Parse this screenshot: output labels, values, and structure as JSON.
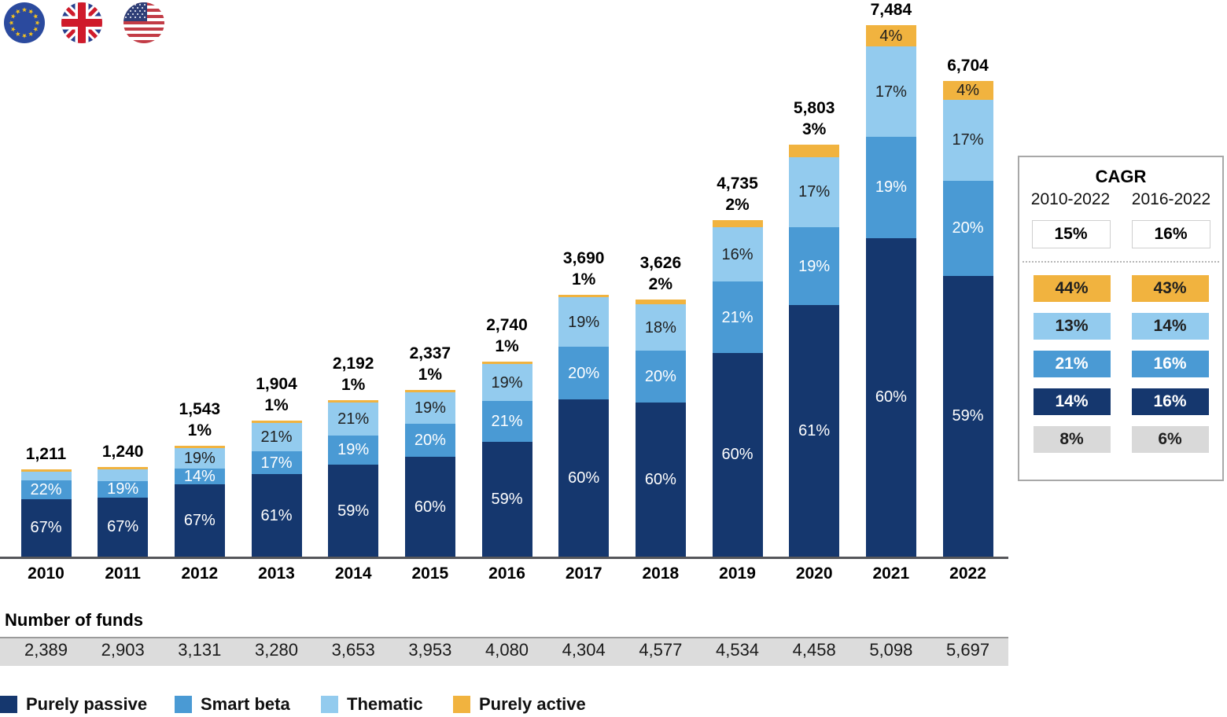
{
  "flags": [
    {
      "name": "eu-flag"
    },
    {
      "name": "uk-flag"
    },
    {
      "name": "us-flag"
    }
  ],
  "chart_data": {
    "type": "bar",
    "stacked": true,
    "categories": [
      "2010",
      "2011",
      "2012",
      "2013",
      "2014",
      "2015",
      "2016",
      "2017",
      "2018",
      "2019",
      "2020",
      "2021",
      "2022"
    ],
    "series": [
      {
        "name": "Purely passive",
        "color": "#15376e",
        "text_color": "#ffffff",
        "values": [
          67,
          67,
          67,
          61,
          59,
          60,
          59,
          60,
          60,
          60,
          61,
          60,
          59
        ]
      },
      {
        "name": "Smart beta",
        "color": "#4a9ad4",
        "text_color": "#ffffff",
        "values": [
          22,
          19,
          14,
          17,
          19,
          20,
          21,
          20,
          20,
          21,
          19,
          19,
          20
        ]
      },
      {
        "name": "Thematic",
        "color": "#93cbee",
        "text_color": "#1f1f1f",
        "values": [
          10,
          13,
          19,
          21,
          21,
          19,
          19,
          19,
          18,
          16,
          17,
          17,
          17
        ]
      },
      {
        "name": "Purely active",
        "color": "#f1b33f",
        "text_color": "#1f1f1f",
        "values": [
          1,
          1,
          1,
          1,
          1,
          1,
          1,
          1,
          2,
          2,
          3,
          4,
          4
        ]
      }
    ],
    "segment_labels": [
      [
        "67%",
        "22%",
        "",
        ""
      ],
      [
        "67%",
        "19%",
        "",
        ""
      ],
      [
        "67%",
        "14%",
        "19%",
        ""
      ],
      [
        "61%",
        "17%",
        "21%",
        ""
      ],
      [
        "59%",
        "19%",
        "21%",
        ""
      ],
      [
        "60%",
        "20%",
        "19%",
        ""
      ],
      [
        "59%",
        "21%",
        "19%",
        ""
      ],
      [
        "60%",
        "20%",
        "19%",
        ""
      ],
      [
        "60%",
        "20%",
        "18%",
        ""
      ],
      [
        "60%",
        "21%",
        "16%",
        ""
      ],
      [
        "61%",
        "19%",
        "17%",
        ""
      ],
      [
        "60%",
        "19%",
        "17%",
        "4%"
      ],
      [
        "59%",
        "20%",
        "17%",
        "4%"
      ]
    ],
    "totals": [
      "1,211",
      "1,240",
      "1,543",
      "1,904",
      "2,192",
      "2,337",
      "2,740",
      "3,690",
      "3,626",
      "4,735",
      "5,803",
      "7,484",
      "6,704"
    ],
    "total_values": [
      1211,
      1240,
      1543,
      1904,
      2192,
      2337,
      2740,
      3690,
      3626,
      4735,
      5803,
      7484,
      6704
    ],
    "above_labels": [
      "",
      "",
      "1%",
      "1%",
      "1%",
      "1%",
      "1%",
      "1%",
      "2%",
      "2%",
      "3%",
      "",
      ""
    ],
    "ylim": [
      0,
      7484
    ],
    "number_of_funds": {
      "label": "Number of funds",
      "values": [
        "2,389",
        "2,903",
        "3,131",
        "3,280",
        "3,653",
        "3,953",
        "4,080",
        "4,304",
        "4,577",
        "4,534",
        "4,458",
        "5,098",
        "5,697"
      ]
    }
  },
  "cagr": {
    "title": "CAGR",
    "columns": [
      "2010-2022",
      "2016-2022"
    ],
    "overall": [
      "15%",
      "16%"
    ],
    "rows": [
      {
        "name": "purely-active",
        "color": "#f1b33f",
        "text": "#1f1f1f",
        "values": [
          "44%",
          "43%"
        ]
      },
      {
        "name": "thematic",
        "color": "#93cbee",
        "text": "#1f1f1f",
        "values": [
          "13%",
          "14%"
        ]
      },
      {
        "name": "smart-beta",
        "color": "#4a9ad4",
        "text": "#ffffff",
        "values": [
          "21%",
          "16%"
        ]
      },
      {
        "name": "purely-passive",
        "color": "#15376e",
        "text": "#ffffff",
        "values": [
          "14%",
          "16%"
        ]
      },
      {
        "name": "other",
        "color": "#d9d9d9",
        "text": "#1f1f1f",
        "values": [
          "8%",
          "6%"
        ]
      }
    ]
  }
}
